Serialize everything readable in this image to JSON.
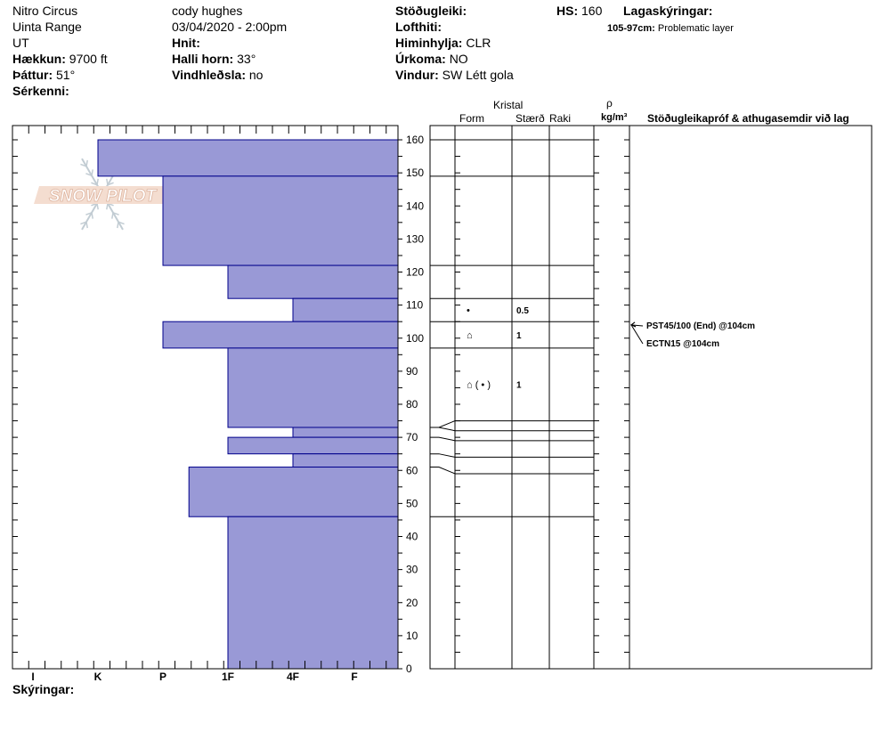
{
  "header": {
    "col1": {
      "name": "Nitro Circus",
      "range": "Uinta Range",
      "state": "UT",
      "elevation_label": "Hækkun:",
      "elevation_value": "9700 ft",
      "aspect_label": "Þáttur:",
      "aspect_value": "51°",
      "features_label": "Sérkenni:"
    },
    "col2": {
      "observer": "cody hughes",
      "datetime": "03/04/2020 - 2:00pm",
      "coords_label": "Hnit:",
      "slope_label": "Halli horn:",
      "slope_value": "33°",
      "wind_loading_label": "Vindhleðsla:",
      "wind_loading_value": "no"
    },
    "col3": {
      "stability_label": "Stöðugleiki:",
      "air_temp_label": "Lofthiti:",
      "sky_label": "Himinhylja:",
      "sky_value": "CLR",
      "precip_label": "Úrkoma:",
      "precip_value": "NO",
      "wind_label": "Vindur:",
      "wind_value": "SW Létt gola"
    },
    "col4": {
      "hs_label": "HS:",
      "hs_value": "160",
      "legend_label": "Lagaskýringar:",
      "layer_note_range": "105-97cm:",
      "layer_note_text": "Problematic layer"
    }
  },
  "logo_text": "SNOW PILOT",
  "columns": {
    "crystal": "Kristal",
    "form": "Form",
    "size": "Stærð",
    "moisture": "Raki",
    "density_symbol": "ρ",
    "density_unit": "kg/m³",
    "tests": "Stöðugleikapróf & athugasemdir við lag"
  },
  "footer": {
    "notes_label": "Skýringar:"
  },
  "colors": {
    "fill": "#9999d6",
    "edge": "#00008b"
  },
  "chart_data": {
    "type": "bar",
    "orientation": "horizontal",
    "title": "",
    "ylabel": "",
    "xlabel": "",
    "ylim": [
      0,
      160
    ],
    "y_ticks": [
      0,
      10,
      20,
      30,
      40,
      50,
      60,
      70,
      80,
      90,
      100,
      110,
      120,
      130,
      140,
      150,
      160
    ],
    "hardness_scale": [
      "I",
      "K",
      "P",
      "1F",
      "4F",
      "F"
    ],
    "hardness_ticks": [
      "I",
      "K",
      "P",
      "1F",
      "4F",
      "F"
    ],
    "layers": [
      {
        "top": 160,
        "bottom": 149,
        "hardness": 1
      },
      {
        "top": 149,
        "bottom": 122,
        "hardness": 2
      },
      {
        "top": 122,
        "bottom": 112,
        "hardness": 3
      },
      {
        "top": 112,
        "bottom": 105,
        "hardness": 4
      },
      {
        "top": 105,
        "bottom": 97,
        "hardness": 2
      },
      {
        "top": 97,
        "bottom": 73,
        "hardness": 3
      },
      {
        "top": 73,
        "bottom": 70,
        "hardness": 4
      },
      {
        "top": 70,
        "bottom": 65,
        "hardness": 3
      },
      {
        "top": 65,
        "bottom": 61,
        "hardness": 4
      },
      {
        "top": 61,
        "bottom": 46,
        "hardness": 2.4
      },
      {
        "top": 46,
        "bottom": 0,
        "hardness": 3
      }
    ],
    "layer_boundaries": [
      160,
      149,
      122,
      112,
      105,
      97,
      75,
      72,
      69,
      64,
      59,
      46
    ],
    "crystal_rows": [
      {
        "center": 108.5,
        "form": "•",
        "size": "0.5"
      },
      {
        "center": 101,
        "form": "⌂",
        "size": "1"
      },
      {
        "center": 86,
        "form": "⌂ ( • )",
        "size": "1"
      }
    ],
    "tests": [
      {
        "label": "PST45/100 (End) @104cm",
        "depth": 104
      },
      {
        "label": "ECTN15 @104cm",
        "depth": 104
      }
    ]
  }
}
